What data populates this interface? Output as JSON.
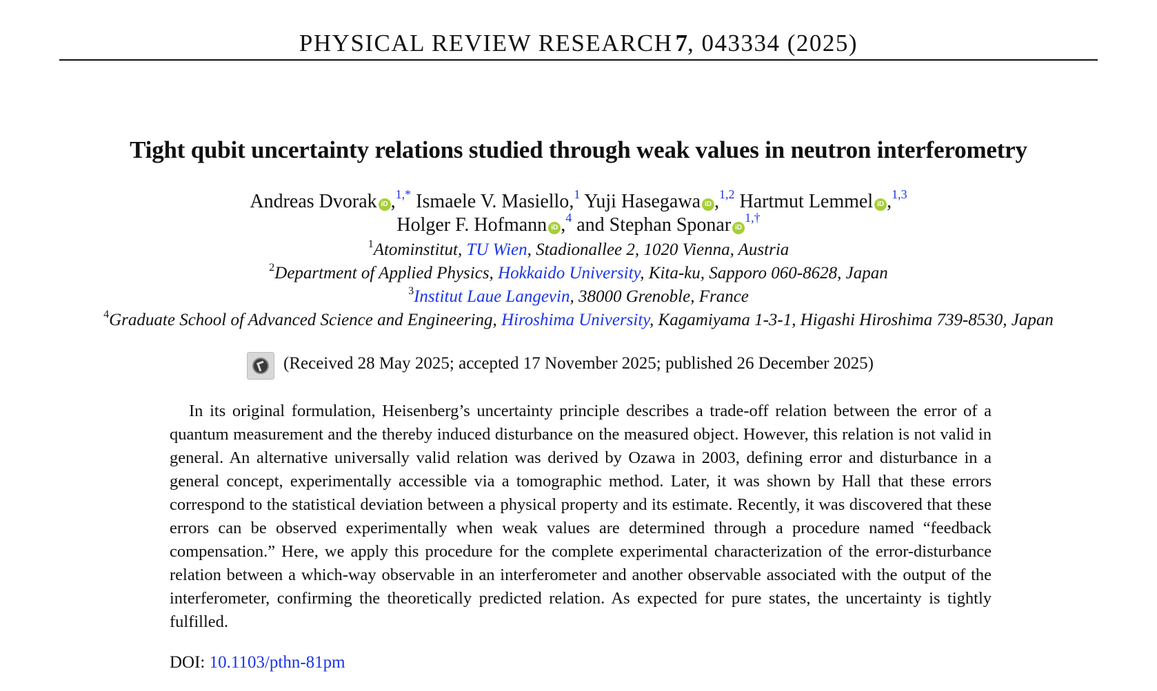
{
  "header": {
    "journal": "PHYSICAL REVIEW RESEARCH",
    "volume": "7",
    "article": ", 043334 (2025)"
  },
  "title": "Tight qubit uncertainty relations studied through weak values in neutron interferometry",
  "authors": [
    {
      "name": "Andreas Dvorak",
      "affil": "1,*"
    },
    {
      "name": "Ismaele V. Masiello",
      "affil": "1"
    },
    {
      "name": "Yuji Hasegawa",
      "affil": "1,2"
    },
    {
      "name": "Hartmut Lemmel",
      "affil": "1,3"
    },
    {
      "name": "Holger F. Hofmann",
      "affil": "4"
    },
    {
      "name": "and Stephan Sponar",
      "affil": "1,†"
    }
  ],
  "affiliations": [
    {
      "num": "1",
      "pre": "Atominstitut, ",
      "link": "TU Wien",
      "post": ", Stadionallee 2, 1020 Vienna, Austria"
    },
    {
      "num": "2",
      "pre": "Department of Applied Physics, ",
      "link": "Hokkaido University",
      "post": ", Kita-ku, Sapporo 060-8628, Japan"
    },
    {
      "num": "3",
      "pre": "",
      "link": "Institut Laue Langevin",
      "post": ", 38000 Grenoble, France"
    },
    {
      "num": "4",
      "pre": "Graduate School of Advanced Science and Engineering, ",
      "link": "Hiroshima University",
      "post": ", Kagamiyama 1-3-1, Higashi Hiroshima 739-8530, Japan"
    }
  ],
  "dates": "(Received 28 May 2025; accepted 17 November 2025; published 26 December 2025)",
  "abstract": "In its original formulation, Heisenberg’s uncertainty principle describes a trade-off relation between the error of a quantum measurement and the thereby induced disturbance on the measured object. However, this relation is not valid in general. An alternative universally valid relation was derived by Ozawa in 2003, defining error and disturbance in a general concept, experimentally accessible via a tomographic method. Later, it was shown by Hall that these errors correspond to the statistical deviation between a physical property and its estimate. Recently, it was discovered that these errors can be observed experimentally when weak values are determined through a procedure named “feedback compensation.” Here, we apply this procedure for the complete experimental characterization of the error-disturbance relation between a which-way observable in an interferometer and another observable associated with the output of the interferometer, confirming the theoretically predicted relation. As expected for pure states, the uncertainty is tightly fulfilled.",
  "doi": {
    "label": "DOI: ",
    "value": "10.1103/pthn-81pm"
  },
  "icons": {
    "orcid": "orcid-icon",
    "crossmark": "check-for-updates-icon"
  },
  "colors": {
    "link": "#1a35e6",
    "orcid": "#a6ce39"
  }
}
